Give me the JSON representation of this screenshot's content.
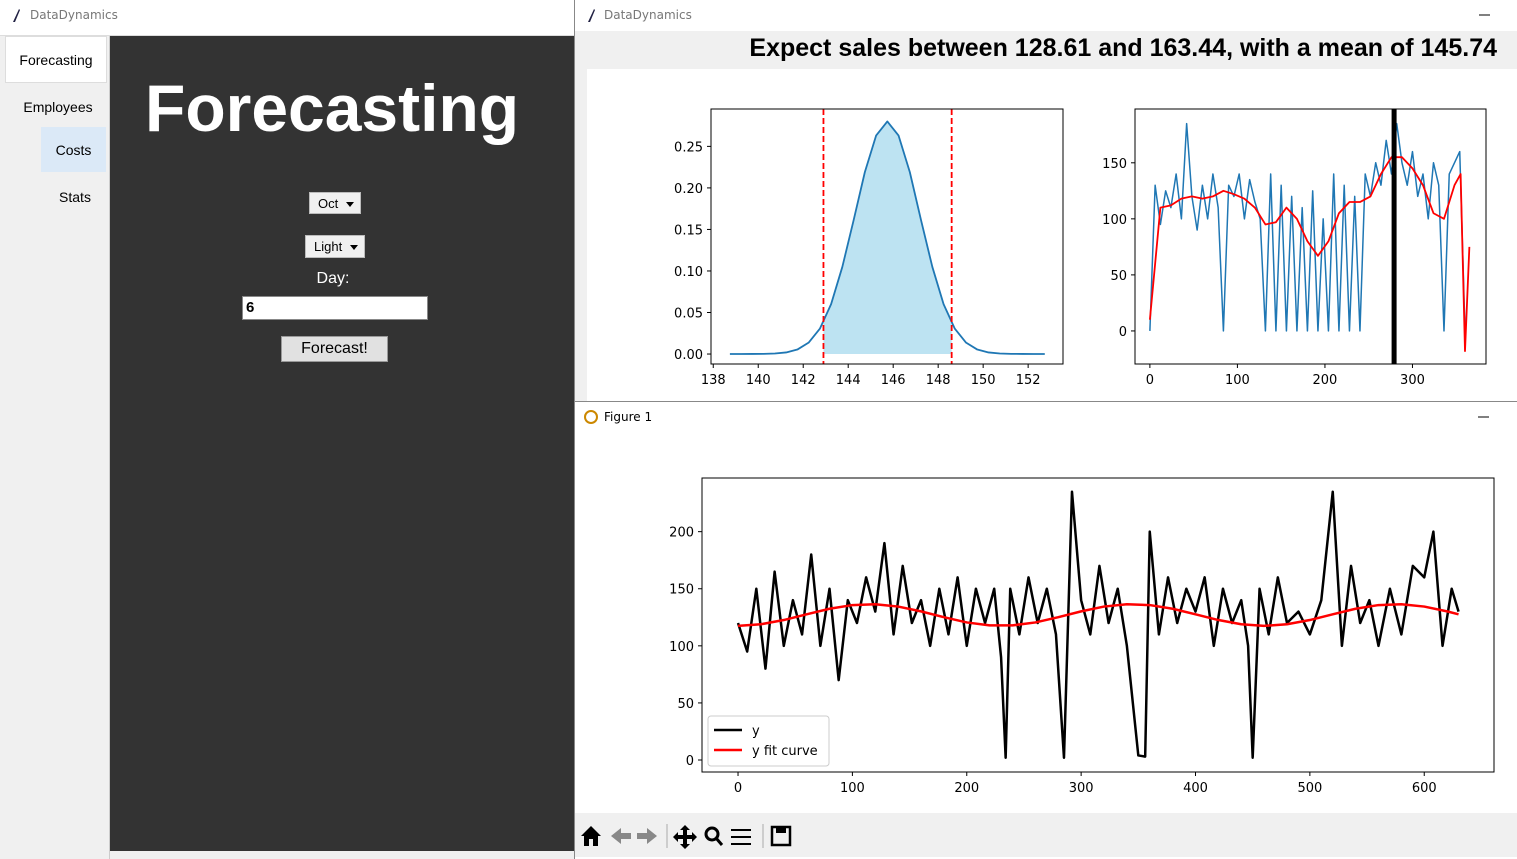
{
  "windows": {
    "main": {
      "title": "DataDynamics",
      "tabs": [
        "Forecasting",
        "Employees",
        "Costs",
        "Stats"
      ],
      "heading": "Forecasting",
      "month": "Oct",
      "mode": "Light",
      "day_label": "Day:",
      "day_value": "6",
      "button": "Forecast!"
    },
    "forecast": {
      "title": "DataDynamics",
      "headline": "Expect sales between 128.61 and 163.44, with a mean of 145.74"
    },
    "figure": {
      "title": "Figure 1"
    }
  },
  "chart_data": [
    {
      "type": "line",
      "x": [
        138.74,
        139.24,
        139.74,
        140.24,
        140.74,
        141.24,
        141.74,
        142.24,
        142.74,
        143.24,
        143.74,
        144.24,
        144.74,
        145.24,
        145.74,
        146.24,
        146.74,
        147.24,
        147.74,
        148.24,
        148.74,
        149.24,
        149.74,
        150.24,
        150.74,
        151.24,
        151.74,
        152.24,
        152.74
      ],
      "series": [
        {
          "color": "#1f77b4",
          "line_width": 1.8,
          "values": [
            0,
            0,
            0.0001,
            0.0002,
            0.0006,
            0.0019,
            0.0054,
            0.0137,
            0.0305,
            0.0601,
            0.105,
            0.161,
            0.219,
            0.263,
            0.28,
            0.263,
            0.219,
            0.161,
            0.105,
            0.0601,
            0.0305,
            0.0137,
            0.0054,
            0.0019,
            0.0006,
            0.0002,
            0.0001,
            0,
            0
          ]
        }
      ],
      "fill_range": [
        142.9,
        148.6
      ],
      "fill_color": "#bde3f2",
      "vlines": [
        142.9,
        148.6
      ],
      "vline_color": "#ff0000",
      "vline_width": 1.8,
      "vline_dash": true,
      "xlim": [
        137.9,
        153.55
      ],
      "ylim": [
        -0.012,
        0.295
      ],
      "xticks": [
        138,
        140,
        142,
        144,
        146,
        148,
        150,
        152
      ],
      "yticks": [
        {
          "value": 0,
          "label": "0.00"
        },
        {
          "value": 0.05,
          "label": "0.05"
        },
        {
          "value": 0.1,
          "label": "0.10"
        },
        {
          "value": 0.15,
          "label": "0.15"
        },
        {
          "value": 0.2,
          "label": "0.20"
        },
        {
          "value": 0.25,
          "label": "0.25"
        }
      ]
    },
    {
      "type": "line",
      "series": [
        {
          "color": "#1f77b4",
          "line_width": 1.5,
          "x": [
            0,
            6,
            12,
            18,
            24,
            30,
            36,
            42,
            48,
            54,
            60,
            66,
            72,
            78,
            84,
            90,
            96,
            102,
            108,
            114,
            120,
            126,
            132,
            138,
            144,
            150,
            156,
            162,
            168,
            174,
            180,
            186,
            192,
            198,
            204,
            210,
            216,
            222,
            228,
            234,
            240,
            246,
            252,
            258,
            264,
            270,
            276,
            282,
            288,
            294,
            300,
            306,
            312,
            318,
            324,
            330,
            336,
            342,
            348,
            354,
            360
          ],
          "values": [
            0,
            130,
            95,
            125,
            110,
            140,
            100,
            185,
            120,
            90,
            130,
            100,
            140,
            110,
            0,
            130,
            120,
            140,
            100,
            135,
            115,
            100,
            0,
            140,
            0,
            130,
            0,
            120,
            0,
            110,
            0,
            125,
            0,
            100,
            0,
            140,
            0,
            130,
            0,
            120,
            0,
            140,
            120,
            150,
            130,
            170,
            140,
            185,
            150,
            130,
            160,
            120,
            140,
            100,
            150,
            130,
            0,
            140,
            150,
            160,
            0
          ]
        },
        {
          "color": "#ff0000",
          "line_width": 1.8,
          "x": [
            0,
            12,
            24,
            36,
            48,
            60,
            72,
            84,
            96,
            108,
            120,
            132,
            144,
            156,
            168,
            180,
            192,
            204,
            216,
            228,
            240,
            252,
            264,
            276,
            288,
            300,
            312,
            324,
            336,
            348,
            355,
            360,
            365
          ],
          "values": [
            10,
            110,
            112,
            118,
            120,
            118,
            120,
            125,
            122,
            118,
            110,
            95,
            97,
            110,
            100,
            80,
            67,
            80,
            105,
            115,
            115,
            120,
            140,
            155,
            155,
            145,
            130,
            105,
            100,
            130,
            140,
            -18,
            75
          ]
        }
      ],
      "vlines": [
        279
      ],
      "vline_color": "#000000",
      "vline_width": 5,
      "vline_dash": false,
      "xlim": [
        -17,
        384
      ],
      "ylim": [
        -29.5,
        198
      ],
      "xticks": [
        0,
        100,
        200,
        300
      ],
      "yticks": [
        0,
        50,
        100,
        150
      ]
    },
    {
      "type": "line",
      "legend": "lower left",
      "series": [
        {
          "name": "y",
          "color": "#000000",
          "line_width": 2.5,
          "x": [
            0,
            8,
            16,
            24,
            32,
            40,
            48,
            56,
            64,
            72,
            80,
            88,
            96,
            104,
            112,
            120,
            128,
            136,
            144,
            152,
            160,
            168,
            176,
            184,
            192,
            200,
            208,
            216,
            224,
            230,
            234,
            238,
            246,
            254,
            262,
            270,
            278,
            285,
            292,
            300,
            308,
            316,
            324,
            332,
            340,
            350,
            356,
            360,
            368,
            376,
            384,
            392,
            400,
            408,
            416,
            424,
            432,
            440,
            446,
            450,
            456,
            464,
            472,
            480,
            490,
            500,
            510,
            520,
            528,
            536,
            544,
            552,
            560,
            570,
            580,
            590,
            600,
            608,
            616,
            624,
            630
          ],
          "values": [
            120,
            95,
            150,
            80,
            165,
            100,
            140,
            110,
            180,
            100,
            150,
            70,
            140,
            120,
            160,
            130,
            190,
            110,
            170,
            120,
            140,
            100,
            150,
            110,
            160,
            100,
            150,
            120,
            150,
            90,
            2,
            150,
            110,
            160,
            120,
            150,
            110,
            2,
            235,
            140,
            110,
            170,
            120,
            150,
            100,
            4,
            3,
            200,
            110,
            160,
            120,
            150,
            130,
            160,
            100,
            150,
            120,
            140,
            100,
            2,
            150,
            110,
            160,
            120,
            130,
            110,
            140,
            235,
            100,
            170,
            120,
            140,
            100,
            150,
            110,
            170,
            160,
            200,
            100,
            150,
            130
          ]
        },
        {
          "name": "y fit curve",
          "color": "#ff0000",
          "line_width": 2.5,
          "x": [
            0,
            20,
            40,
            60,
            80,
            100,
            120,
            140,
            160,
            180,
            200,
            220,
            240,
            260,
            280,
            300,
            320,
            340,
            360,
            380,
            400,
            420,
            440,
            460,
            480,
            500,
            520,
            540,
            560,
            580,
            600,
            620,
            630
          ],
          "values": [
            117.5,
            118.9,
            122.6,
            127.6,
            132.5,
            135.7,
            136.4,
            134.4,
            130.2,
            125.1,
            120.5,
            117.9,
            117.9,
            120.5,
            125.1,
            130.2,
            134.4,
            136.4,
            135.7,
            132.5,
            127.6,
            122.6,
            118.9,
            117.5,
            118.9,
            122.6,
            127.6,
            132.5,
            135.7,
            136.4,
            134.4,
            130.2,
            127.6
          ]
        }
      ],
      "xlim": [
        -31.5,
        661
      ],
      "ylim": [
        -10.5,
        247
      ],
      "xticks": [
        0,
        100,
        200,
        300,
        400,
        500,
        600
      ],
      "yticks": [
        0,
        50,
        100,
        150,
        200
      ]
    }
  ]
}
